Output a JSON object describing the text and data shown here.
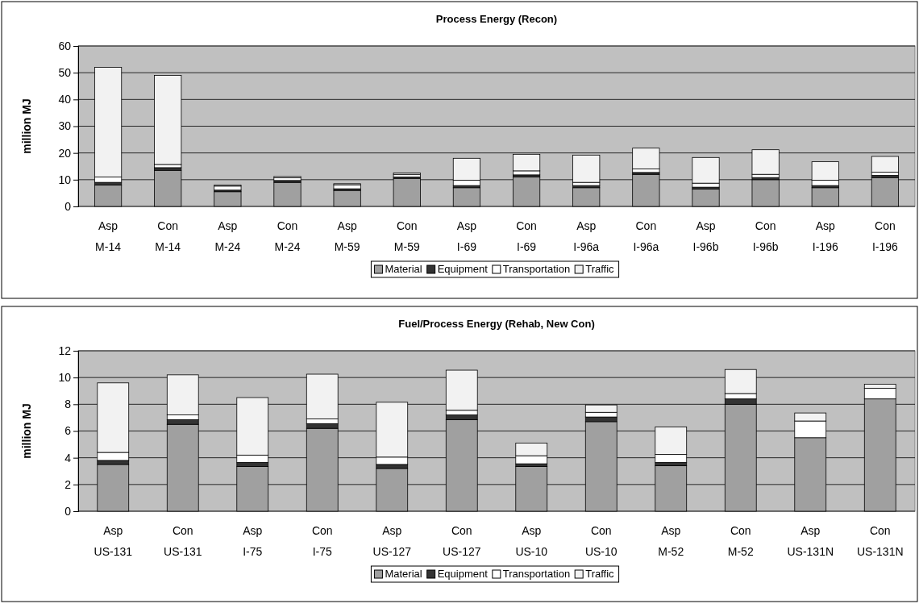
{
  "chart_data": [
    {
      "type": "bar",
      "title": "Process Energy (Recon)",
      "ylabel": "million MJ",
      "stacked": true,
      "legend": "bottom",
      "grid": "y",
      "ylim": [
        0,
        60
      ],
      "yticks": [
        0,
        10,
        20,
        30,
        40,
        50,
        60
      ],
      "categories": [
        "Asp\nM-14",
        "Con\nM-14",
        "Asp\nM-24",
        "Con\nM-24",
        "Asp\nM-59",
        "Con\nM-59",
        "Asp\nI-69",
        "Con\nI-69",
        "Asp\nI-96a",
        "Con\nI-96a",
        "Asp\nI-96b",
        "Con\nI-96b",
        "Asp\nI-196",
        "Con\nI-196"
      ],
      "series": [
        {
          "name": "Material",
          "color": "#a0a0a0",
          "values": [
            8,
            13.5,
            5.5,
            9,
            6,
            10.5,
            7,
            11,
            7,
            12,
            6.5,
            10,
            7,
            10.8
          ]
        },
        {
          "name": "Equipment",
          "color": "#333333",
          "values": [
            1,
            1,
            0.6,
            0.7,
            0.6,
            0.5,
            0.8,
            0.8,
            0.8,
            0.7,
            0.7,
            0.8,
            0.8,
            0.8
          ]
        },
        {
          "name": "Transportation",
          "color": "#ffffff",
          "values": [
            2,
            1.2,
            1.5,
            1,
            1.5,
            1,
            2,
            1.5,
            1.2,
            1.3,
            1.5,
            1.2,
            2,
            1.2
          ]
        },
        {
          "name": "Traffic",
          "color": "#f2f2f2",
          "values": [
            41,
            33.3,
            0.4,
            0.5,
            0.4,
            0.5,
            8.2,
            6.2,
            10.2,
            7.8,
            9.6,
            9.2,
            6.9,
            5.9
          ]
        }
      ]
    },
    {
      "type": "bar",
      "title": "Fuel/Process Energy (Rehab, New Con)",
      "ylabel": "million MJ",
      "stacked": true,
      "legend": "bottom",
      "grid": "y",
      "ylim": [
        0,
        12
      ],
      "yticks": [
        0,
        2,
        4,
        6,
        8,
        10,
        12
      ],
      "categories": [
        "Asp\nUS-131",
        "Con\nUS-131",
        "Asp\nI-75",
        "Con\nI-75",
        "Asp\nUS-127",
        "Con\nUS-127",
        "Asp\nUS-10",
        "Con\nUS-10",
        "Asp\nM-52",
        "Con\nM-52",
        "Asp\nUS-131N",
        "Con\nUS-131N"
      ],
      "series": [
        {
          "name": "Material",
          "color": "#a0a0a0",
          "values": [
            3.5,
            6.5,
            3.35,
            6.2,
            3.2,
            6.85,
            3.35,
            6.7,
            3.4,
            8.0,
            5.5,
            8.4
          ]
        },
        {
          "name": "Equipment",
          "color": "#333333",
          "values": [
            0.3,
            0.35,
            0.3,
            0.35,
            0.3,
            0.35,
            0.2,
            0.35,
            0.25,
            0.4,
            0,
            0
          ]
        },
        {
          "name": "Transportation",
          "color": "#ffffff",
          "values": [
            0.6,
            0.35,
            0.55,
            0.35,
            0.55,
            0.35,
            0.6,
            0.35,
            0.6,
            0.4,
            1.25,
            0.8
          ]
        },
        {
          "name": "Traffic",
          "color": "#f2f2f2",
          "values": [
            5.2,
            3.0,
            4.3,
            3.35,
            4.1,
            3.0,
            0.95,
            0.55,
            2.05,
            1.8,
            0.6,
            0.3
          ]
        }
      ]
    }
  ]
}
